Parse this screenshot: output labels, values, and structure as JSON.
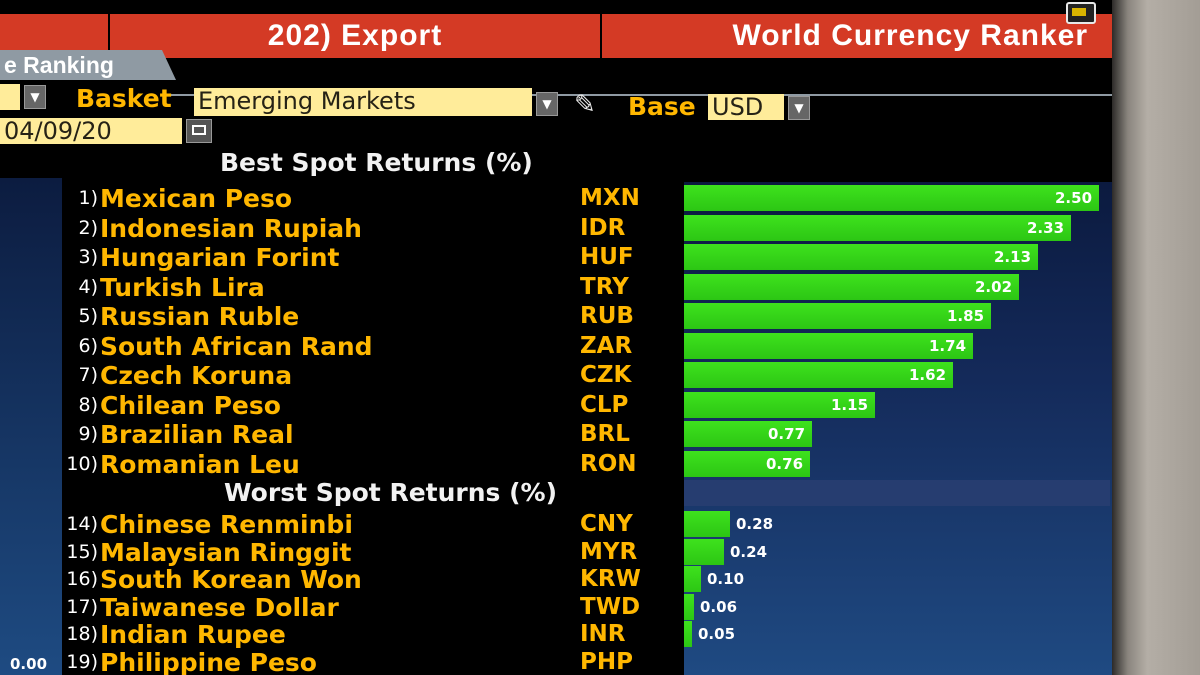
{
  "function_bar": {
    "command": "202) Export",
    "title": "World Currency Ranker"
  },
  "tab": {
    "label": "e Ranking"
  },
  "controls": {
    "basket_label": "Basket",
    "basket_value": "Emerging Markets",
    "base_label": "Base",
    "base_value": "USD",
    "date_value": "04/09/20"
  },
  "headings": {
    "best": "Best Spot Returns (%)",
    "worst": "Worst Spot Returns (%)"
  },
  "left_axis_value": "0.00",
  "colors": {
    "function_bar": "#d43a25",
    "amber_text": "#ffb700",
    "bar_green": "#2cc614",
    "plot_bg": "#142a5a"
  },
  "best": [
    {
      "rank": "1)",
      "name": "Mexican Peso",
      "code": "MXN",
      "value": "2.50"
    },
    {
      "rank": "2)",
      "name": "Indonesian Rupiah",
      "code": "IDR",
      "value": "2.33"
    },
    {
      "rank": "3)",
      "name": "Hungarian Forint",
      "code": "HUF",
      "value": "2.13"
    },
    {
      "rank": "4)",
      "name": "Turkish Lira",
      "code": "TRY",
      "value": "2.02"
    },
    {
      "rank": "5)",
      "name": "Russian Ruble",
      "code": "RUB",
      "value": "1.85"
    },
    {
      "rank": "6)",
      "name": "South African Rand",
      "code": "ZAR",
      "value": "1.74"
    },
    {
      "rank": "7)",
      "name": "Czech Koruna",
      "code": "CZK",
      "value": "1.62"
    },
    {
      "rank": "8)",
      "name": "Chilean Peso",
      "code": "CLP",
      "value": "1.15"
    },
    {
      "rank": "9)",
      "name": "Brazilian Real",
      "code": "BRL",
      "value": "0.77"
    },
    {
      "rank": "10)",
      "name": "Romanian Leu",
      "code": "RON",
      "value": "0.76"
    }
  ],
  "worst": [
    {
      "rank": "14)",
      "name": "Chinese Renminbi",
      "code": "CNY",
      "value": "0.28"
    },
    {
      "rank": "15)",
      "name": "Malaysian Ringgit",
      "code": "MYR",
      "value": "0.24"
    },
    {
      "rank": "16)",
      "name": "South Korean Won",
      "code": "KRW",
      "value": "0.10"
    },
    {
      "rank": "17)",
      "name": "Taiwanese Dollar",
      "code": "TWD",
      "value": "0.06"
    },
    {
      "rank": "18)",
      "name": "Indian Rupee",
      "code": "INR",
      "value": "0.05"
    },
    {
      "rank": "19)",
      "name": "Philippine Peso",
      "code": "PHP",
      "value": ""
    }
  ]
}
